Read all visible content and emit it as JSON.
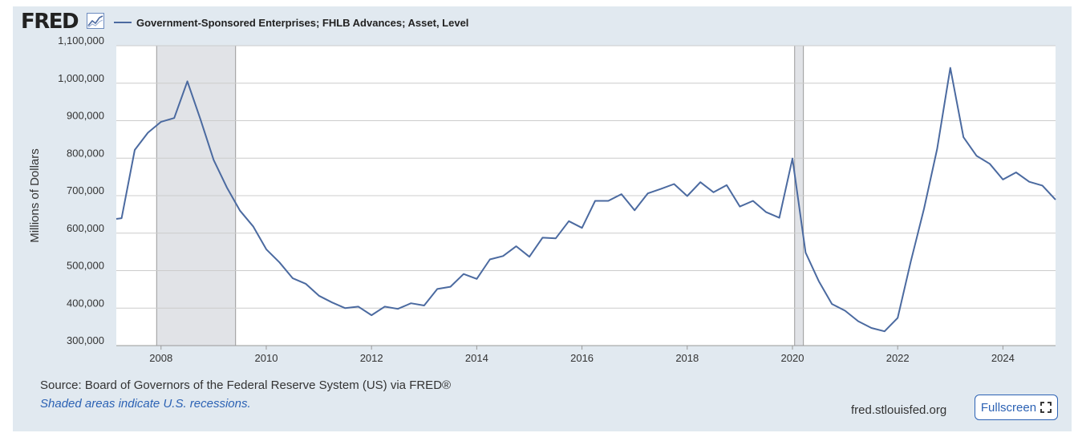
{
  "header": {
    "logo_text": "FRED",
    "logo_icon": "chart-line-icon",
    "legend_label": "Government-Sponsored Enterprises; FHLB Advances; Asset, Level"
  },
  "footer": {
    "source": "Source: Board of Governors of the Federal Reserve System (US) via FRED®",
    "note": "Shaded areas indicate U.S. recessions.",
    "site": "fred.stlouisfed.org",
    "fullscreen_label": "Fullscreen",
    "fullscreen_icon": "fullscreen-icon"
  },
  "colors": {
    "series": "#4b6aa0",
    "recession": "#e1e3e7",
    "grid": "#cccccc",
    "panel": "#e1e9f0"
  },
  "chart_data": {
    "type": "line",
    "title": "",
    "xlabel": "",
    "ylabel": "Millions of Dollars",
    "xlim": [
      2007.15,
      2025.0
    ],
    "ylim": [
      300000,
      1100000
    ],
    "y_ticks": [
      300000,
      400000,
      500000,
      600000,
      700000,
      800000,
      900000,
      1000000,
      1100000
    ],
    "y_tick_labels": [
      "300,000",
      "400,000",
      "500,000",
      "600,000",
      "700,000",
      "800,000",
      "900,000",
      "1,000,000",
      "1,100,000"
    ],
    "x_ticks": [
      2008,
      2010,
      2012,
      2014,
      2016,
      2018,
      2020,
      2022,
      2024
    ],
    "x_tick_labels": [
      "2008",
      "2010",
      "2012",
      "2014",
      "2016",
      "2018",
      "2020",
      "2022",
      "2024"
    ],
    "grid": true,
    "legend": "top-left",
    "recessions": [
      [
        2007.9167,
        2009.4167
      ],
      [
        2020.0417,
        2020.2083
      ]
    ],
    "series": [
      {
        "name": "Government-Sponsored Enterprises; FHLB Advances; Asset, Level",
        "x": [
          2007.15,
          2007.25,
          2007.5,
          2007.75,
          2008.0,
          2008.25,
          2008.5,
          2008.75,
          2009.0,
          2009.25,
          2009.5,
          2009.75,
          2010.0,
          2010.25,
          2010.5,
          2010.75,
          2011.0,
          2011.25,
          2011.5,
          2011.75,
          2012.0,
          2012.25,
          2012.5,
          2012.75,
          2013.0,
          2013.25,
          2013.5,
          2013.75,
          2014.0,
          2014.25,
          2014.5,
          2014.75,
          2015.0,
          2015.25,
          2015.5,
          2015.75,
          2016.0,
          2016.25,
          2016.5,
          2016.75,
          2017.0,
          2017.25,
          2017.5,
          2017.75,
          2018.0,
          2018.25,
          2018.5,
          2018.75,
          2019.0,
          2019.25,
          2019.5,
          2019.75,
          2020.0,
          2020.25,
          2020.5,
          2020.75,
          2021.0,
          2021.25,
          2021.5,
          2021.75,
          2022.0,
          2022.25,
          2022.5,
          2022.75,
          2023.0,
          2023.25,
          2023.5,
          2023.75,
          2024.0,
          2024.25,
          2024.5,
          2024.75,
          2025.0
        ],
        "values": [
          638000,
          640000,
          822000,
          868000,
          897000,
          907000,
          1005000,
          903000,
          795000,
          722000,
          660000,
          618000,
          557000,
          522000,
          480000,
          465000,
          433000,
          415000,
          400000,
          404000,
          381000,
          404000,
          398000,
          413000,
          407000,
          451000,
          457000,
          491000,
          478000,
          530000,
          539000,
          565000,
          537000,
          588000,
          586000,
          632000,
          614000,
          686000,
          686000,
          704000,
          661000,
          706000,
          718000,
          731000,
          699000,
          736000,
          709000,
          728000,
          671000,
          686000,
          656000,
          641000,
          799000,
          548000,
          472000,
          411000,
          393000,
          365000,
          347000,
          338000,
          374000,
          525000,
          665000,
          825000,
          1041000,
          856000,
          806000,
          785000,
          743000,
          762000,
          737000,
          727000,
          689000
        ]
      }
    ]
  }
}
